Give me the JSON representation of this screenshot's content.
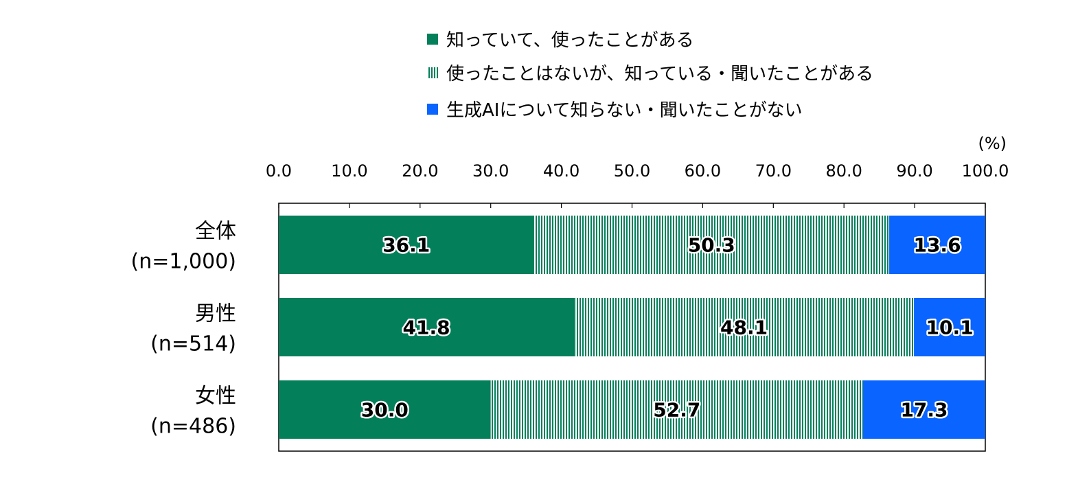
{
  "chart_data": {
    "type": "bar",
    "orientation": "horizontal",
    "stacked": true,
    "unit": "(%)",
    "xlim": [
      0,
      100
    ],
    "x_ticks": [
      "0.0",
      "10.0",
      "20.0",
      "30.0",
      "40.0",
      "50.0",
      "60.0",
      "70.0",
      "80.0",
      "90.0",
      "100.0"
    ],
    "x_tick_values": [
      0,
      10,
      20,
      30,
      40,
      50,
      60,
      70,
      80,
      90,
      100
    ],
    "categories": [
      {
        "label": "全体",
        "sub": "(n=1,000)"
      },
      {
        "label": "男性",
        "sub": "(n=514)"
      },
      {
        "label": "女性",
        "sub": "(n=486)"
      }
    ],
    "series": [
      {
        "name": "知っていて、使ったことがある",
        "color": "#037F5A",
        "pattern": "solid",
        "values": [
          36.1,
          41.8,
          30.0
        ]
      },
      {
        "name": "使ったことはないが、知っている・聞いたことがある",
        "color": "#037F5A",
        "pattern": "vertical-lines",
        "values": [
          50.3,
          48.1,
          52.7
        ]
      },
      {
        "name": "生成AIについて知らない・聞いたことがない",
        "color": "#0A64FF",
        "pattern": "solid",
        "values": [
          13.6,
          10.1,
          17.3
        ]
      }
    ],
    "legend_position": "top",
    "grid": false
  }
}
